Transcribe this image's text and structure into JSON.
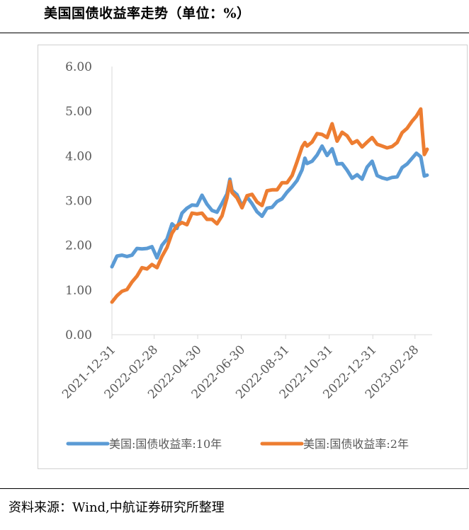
{
  "chart_data": {
    "type": "line",
    "title": "美国国债收益率走势（单位：%）",
    "ylim": [
      0,
      6
    ],
    "yticks": [
      "0.00",
      "1.00",
      "2.00",
      "3.00",
      "4.00",
      "5.00",
      "6.00"
    ],
    "xticks": [
      "2021-12-31",
      "2022-02-28",
      "2022-04-30",
      "2022-06-30",
      "2022-08-31",
      "2022-10-31",
      "2022-12-31",
      "2023-02-28"
    ],
    "legend_position": "bottom",
    "grid": false,
    "series": [
      {
        "name": "美国:国债收益率:10年",
        "color": "#5B9BD5",
        "points": [
          [
            "2021-12-31",
            1.52
          ],
          [
            "2022-01-07",
            1.76
          ],
          [
            "2022-01-14",
            1.78
          ],
          [
            "2022-01-21",
            1.75
          ],
          [
            "2022-01-28",
            1.78
          ],
          [
            "2022-02-04",
            1.93
          ],
          [
            "2022-02-11",
            1.92
          ],
          [
            "2022-02-18",
            1.93
          ],
          [
            "2022-02-25",
            1.97
          ],
          [
            "2022-03-04",
            1.72
          ],
          [
            "2022-03-11",
            2.0
          ],
          [
            "2022-03-18",
            2.14
          ],
          [
            "2022-03-25",
            2.48
          ],
          [
            "2022-04-01",
            2.38
          ],
          [
            "2022-04-08",
            2.72
          ],
          [
            "2022-04-15",
            2.83
          ],
          [
            "2022-04-22",
            2.9
          ],
          [
            "2022-04-29",
            2.89
          ],
          [
            "2022-05-06",
            3.12
          ],
          [
            "2022-05-13",
            2.92
          ],
          [
            "2022-05-20",
            2.78
          ],
          [
            "2022-05-27",
            2.74
          ],
          [
            "2022-06-03",
            2.94
          ],
          [
            "2022-06-10",
            3.15
          ],
          [
            "2022-06-14",
            3.48
          ],
          [
            "2022-06-17",
            3.23
          ],
          [
            "2022-06-24",
            3.13
          ],
          [
            "2022-07-01",
            2.88
          ],
          [
            "2022-07-08",
            3.08
          ],
          [
            "2022-07-15",
            2.93
          ],
          [
            "2022-07-22",
            2.75
          ],
          [
            "2022-07-29",
            2.65
          ],
          [
            "2022-08-05",
            2.83
          ],
          [
            "2022-08-12",
            2.85
          ],
          [
            "2022-08-19",
            2.98
          ],
          [
            "2022-08-26",
            3.04
          ],
          [
            "2022-09-02",
            3.19
          ],
          [
            "2022-09-09",
            3.31
          ],
          [
            "2022-09-16",
            3.45
          ],
          [
            "2022-09-23",
            3.69
          ],
          [
            "2022-09-27",
            3.95
          ],
          [
            "2022-09-30",
            3.83
          ],
          [
            "2022-10-07",
            3.88
          ],
          [
            "2022-10-14",
            4.02
          ],
          [
            "2022-10-21",
            4.22
          ],
          [
            "2022-10-28",
            4.01
          ],
          [
            "2022-11-04",
            4.16
          ],
          [
            "2022-11-11",
            3.82
          ],
          [
            "2022-11-18",
            3.83
          ],
          [
            "2022-11-25",
            3.68
          ],
          [
            "2022-12-02",
            3.5
          ],
          [
            "2022-12-09",
            3.58
          ],
          [
            "2022-12-16",
            3.48
          ],
          [
            "2022-12-23",
            3.75
          ],
          [
            "2022-12-30",
            3.88
          ],
          [
            "2023-01-06",
            3.56
          ],
          [
            "2023-01-13",
            3.51
          ],
          [
            "2023-01-20",
            3.48
          ],
          [
            "2023-01-27",
            3.52
          ],
          [
            "2023-02-03",
            3.53
          ],
          [
            "2023-02-10",
            3.74
          ],
          [
            "2023-02-17",
            3.82
          ],
          [
            "2023-02-24",
            3.95
          ],
          [
            "2023-03-02",
            4.06
          ],
          [
            "2023-03-08",
            3.98
          ],
          [
            "2023-03-13",
            3.55
          ],
          [
            "2023-03-17",
            3.57
          ]
        ]
      },
      {
        "name": "美国:国债收益率:2年",
        "color": "#ED7D31",
        "points": [
          [
            "2021-12-31",
            0.73
          ],
          [
            "2022-01-07",
            0.87
          ],
          [
            "2022-01-14",
            0.97
          ],
          [
            "2022-01-21",
            1.01
          ],
          [
            "2022-01-28",
            1.18
          ],
          [
            "2022-02-04",
            1.31
          ],
          [
            "2022-02-11",
            1.5
          ],
          [
            "2022-02-18",
            1.47
          ],
          [
            "2022-02-25",
            1.57
          ],
          [
            "2022-03-04",
            1.5
          ],
          [
            "2022-03-11",
            1.75
          ],
          [
            "2022-03-18",
            1.95
          ],
          [
            "2022-03-25",
            2.27
          ],
          [
            "2022-04-01",
            2.44
          ],
          [
            "2022-04-08",
            2.51
          ],
          [
            "2022-04-15",
            2.46
          ],
          [
            "2022-04-22",
            2.72
          ],
          [
            "2022-04-29",
            2.7
          ],
          [
            "2022-05-06",
            2.72
          ],
          [
            "2022-05-13",
            2.58
          ],
          [
            "2022-05-20",
            2.58
          ],
          [
            "2022-05-27",
            2.48
          ],
          [
            "2022-06-03",
            2.66
          ],
          [
            "2022-06-10",
            3.06
          ],
          [
            "2022-06-14",
            3.43
          ],
          [
            "2022-06-17",
            3.18
          ],
          [
            "2022-06-24",
            3.06
          ],
          [
            "2022-07-01",
            2.84
          ],
          [
            "2022-07-08",
            3.11
          ],
          [
            "2022-07-15",
            3.14
          ],
          [
            "2022-07-22",
            2.97
          ],
          [
            "2022-07-29",
            2.89
          ],
          [
            "2022-08-05",
            3.22
          ],
          [
            "2022-08-12",
            3.24
          ],
          [
            "2022-08-19",
            3.24
          ],
          [
            "2022-08-26",
            3.4
          ],
          [
            "2022-09-02",
            3.4
          ],
          [
            "2022-09-09",
            3.56
          ],
          [
            "2022-09-16",
            3.87
          ],
          [
            "2022-09-23",
            4.2
          ],
          [
            "2022-09-27",
            4.3
          ],
          [
            "2022-09-30",
            4.22
          ],
          [
            "2022-10-07",
            4.31
          ],
          [
            "2022-10-14",
            4.5
          ],
          [
            "2022-10-21",
            4.48
          ],
          [
            "2022-10-28",
            4.41
          ],
          [
            "2022-11-04",
            4.72
          ],
          [
            "2022-11-11",
            4.33
          ],
          [
            "2022-11-18",
            4.53
          ],
          [
            "2022-11-25",
            4.45
          ],
          [
            "2022-12-02",
            4.28
          ],
          [
            "2022-12-09",
            4.34
          ],
          [
            "2022-12-16",
            4.2
          ],
          [
            "2022-12-23",
            4.31
          ],
          [
            "2022-12-30",
            4.41
          ],
          [
            "2023-01-06",
            4.26
          ],
          [
            "2023-01-13",
            4.22
          ],
          [
            "2023-01-20",
            4.18
          ],
          [
            "2023-01-27",
            4.21
          ],
          [
            "2023-02-03",
            4.3
          ],
          [
            "2023-02-10",
            4.52
          ],
          [
            "2023-02-17",
            4.62
          ],
          [
            "2023-02-24",
            4.78
          ],
          [
            "2023-03-02",
            4.89
          ],
          [
            "2023-03-08",
            5.05
          ],
          [
            "2023-03-10",
            4.6
          ],
          [
            "2023-03-13",
            4.03
          ],
          [
            "2023-03-17",
            4.15
          ]
        ]
      }
    ]
  },
  "source": "资料来源：Wind,中航证券研究所整理"
}
